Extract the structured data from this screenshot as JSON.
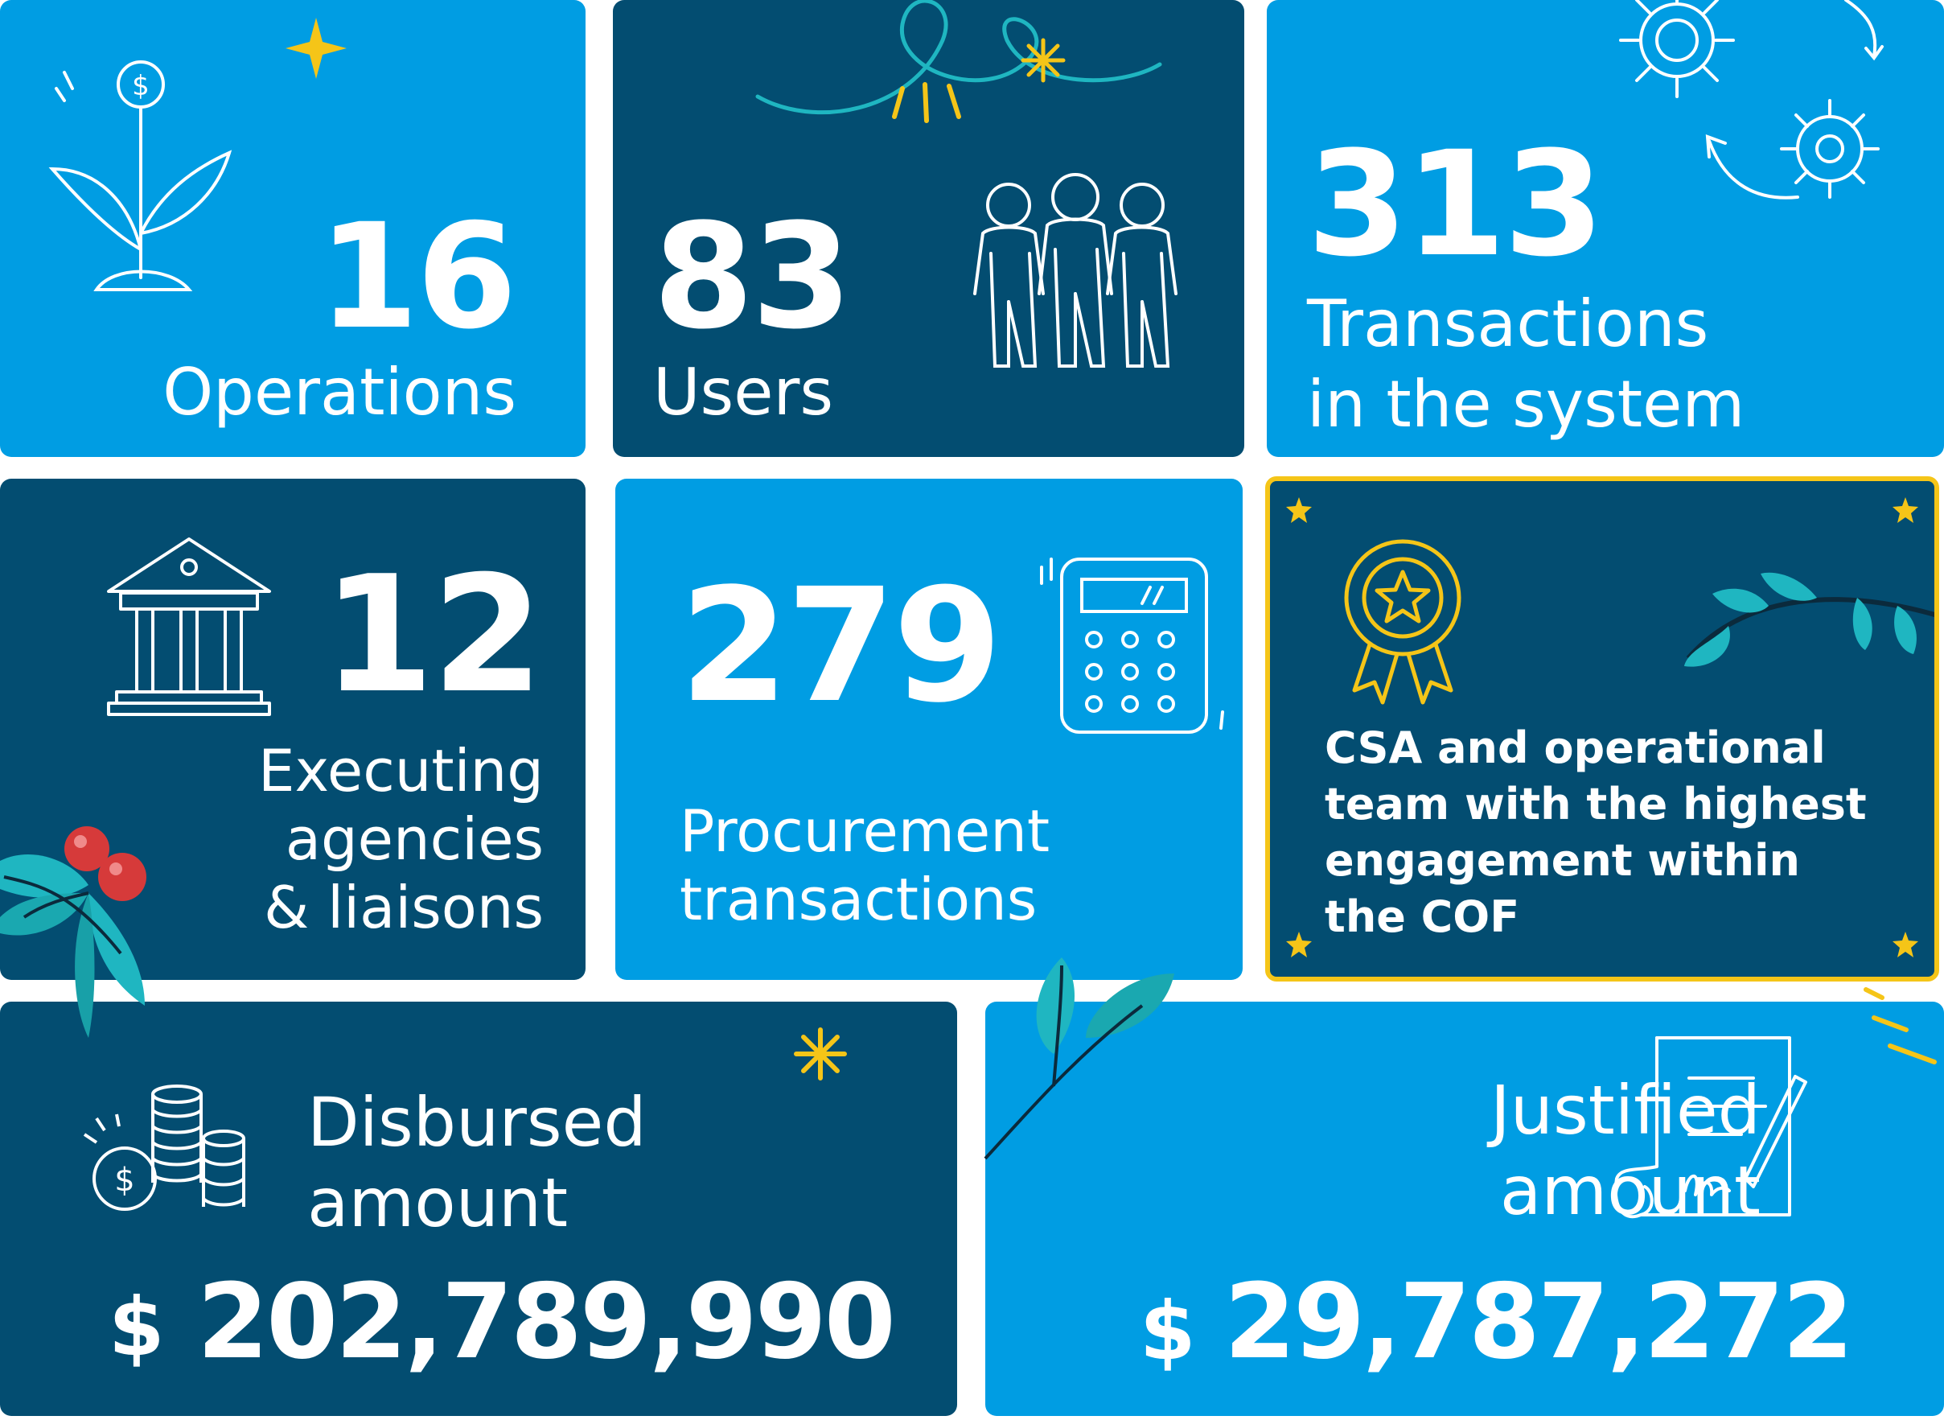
{
  "cards": {
    "operations": {
      "value": "16",
      "label": "Operations"
    },
    "users": {
      "value": "83",
      "label": "Users"
    },
    "transactions": {
      "value": "313",
      "label_line1": "Transactions",
      "label_line2": "in the system"
    },
    "agencies": {
      "value": "12",
      "label_line1": "Executing",
      "label_line2": "agencies",
      "label_line3": "& liaisons"
    },
    "procurement": {
      "value": "279",
      "label_line1": "Procurement",
      "label_line2": "transactions"
    },
    "award": {
      "text_line1": "CSA and operational",
      "text_line2": "team with the highest",
      "text_line3": "engagement within",
      "text_line4": "the COF"
    },
    "disbursed": {
      "label_line1": "Disbursed",
      "label_line2": "amount",
      "currency": "$",
      "value": "202,789,990"
    },
    "justified": {
      "label_line1": "Justified",
      "label_line2": "amount",
      "currency": "$",
      "value": "29,787,272"
    }
  },
  "icons": [
    "money-plant-icon",
    "users-group-icon",
    "gears-icon",
    "bank-building-icon",
    "calculator-icon",
    "medal-icon",
    "coins-stack-icon",
    "signed-document-icon"
  ],
  "colors": {
    "light_blue": "#009de3",
    "dark_blue": "#034d71",
    "accent_yellow": "#f5c518",
    "teal_leaf": "#1fb6c1",
    "berry_red": "#d63a3a"
  }
}
